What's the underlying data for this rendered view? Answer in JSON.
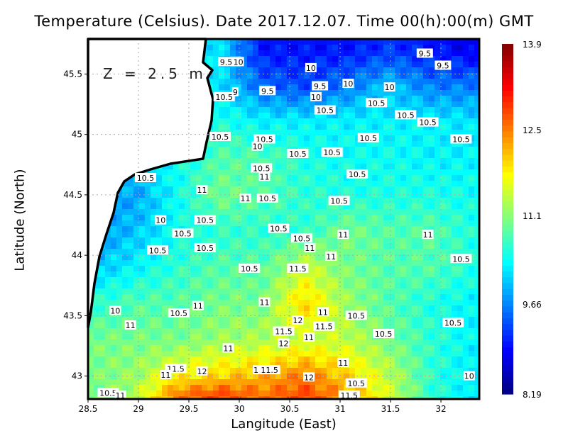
{
  "title": "Temperature (Celsius). Date 2017.12.07. Time 00(h):00(m)  GMT",
  "depth_label": "Z = 2.5 m",
  "chart_data": {
    "type": "heatmap",
    "title": "Temperature (Celsius). Date 2017.12.07. Time 00(h):00(m)  GMT",
    "xlabel": "Langitude (East)",
    "ylabel": "Latitude (North)",
    "xlim": [
      28.5,
      32.38
    ],
    "ylim": [
      42.81,
      45.79
    ],
    "xticks": [
      "28.5",
      "29",
      "29.5",
      "30",
      "30.5",
      "31",
      "31.5",
      "32"
    ],
    "yticks": [
      "43",
      "43.5",
      "44",
      "44.5",
      "45",
      "45.5"
    ],
    "grid": true,
    "colorbar": {
      "colormap": "jet",
      "min": 8.19,
      "max": 13.9,
      "ticks": [
        "13.9",
        "12.5",
        "11.1",
        "9.66",
        "8.19"
      ]
    },
    "grid_lon": [
      28.55,
      28.97,
      29.39,
      29.81,
      30.23,
      30.65,
      31.07,
      31.49,
      31.91,
      32.33
    ],
    "grid_lat": [
      45.7,
      45.4,
      45.1,
      44.8,
      44.5,
      44.2,
      43.9,
      43.6,
      43.3,
      43.0,
      42.85
    ],
    "values": [
      [
        null,
        null,
        null,
        null,
        9.0,
        9.0,
        9.0,
        9.2,
        9.0,
        8.8
      ],
      [
        null,
        null,
        null,
        null,
        9.5,
        9.3,
        9.6,
        10.0,
        9.6,
        9.6
      ],
      [
        null,
        null,
        null,
        10.5,
        10.3,
        10.3,
        10.3,
        10.3,
        10.3,
        10.2
      ],
      [
        null,
        10.2,
        10.4,
        10.8,
        10.8,
        10.5,
        10.4,
        10.4,
        10.3,
        10.3
      ],
      [
        9.9,
        9.8,
        10.4,
        11.0,
        10.8,
        10.6,
        10.5,
        10.5,
        10.5,
        10.4
      ],
      [
        9.7,
        10.0,
        10.4,
        10.6,
        10.6,
        10.6,
        11.0,
        10.8,
        10.8,
        10.5
      ],
      [
        10.0,
        10.3,
        10.6,
        10.8,
        10.8,
        11.5,
        11.0,
        10.8,
        10.8,
        10.5
      ],
      [
        10.6,
        10.8,
        10.8,
        11.0,
        11.0,
        12.0,
        11.2,
        10.8,
        10.5,
        10.3
      ],
      [
        11.0,
        11.0,
        11.0,
        11.2,
        11.3,
        11.5,
        11.4,
        11.0,
        10.6,
        10.3
      ],
      [
        11.0,
        11.2,
        11.8,
        12.0,
        12.2,
        12.5,
        12.0,
        11.4,
        10.6,
        10.2
      ],
      [
        11.0,
        11.3,
        12.5,
        12.8,
        12.5,
        12.8,
        12.3,
        11.5,
        10.6,
        10.2
      ]
    ],
    "contour_labels": [
      {
        "lon": 29.87,
        "lat": 45.6,
        "text": "9.5"
      },
      {
        "lon": 29.99,
        "lat": 45.6,
        "text": "10"
      },
      {
        "lon": 31.84,
        "lat": 45.67,
        "text": "9.5"
      },
      {
        "lon": 32.02,
        "lat": 45.57,
        "text": "9.5"
      },
      {
        "lon": 30.71,
        "lat": 45.55,
        "text": "10"
      },
      {
        "lon": 31.08,
        "lat": 45.42,
        "text": "10"
      },
      {
        "lon": 31.49,
        "lat": 45.39,
        "text": "10"
      },
      {
        "lon": 30.28,
        "lat": 45.36,
        "text": "9.5"
      },
      {
        "lon": 30.8,
        "lat": 45.4,
        "text": "9.5"
      },
      {
        "lon": 30.76,
        "lat": 45.31,
        "text": "10"
      },
      {
        "lon": 29.85,
        "lat": 45.31,
        "text": "10.5"
      },
      {
        "lon": 29.96,
        "lat": 45.35,
        "text": "9"
      },
      {
        "lon": 30.85,
        "lat": 45.2,
        "text": "10.5"
      },
      {
        "lon": 31.36,
        "lat": 45.26,
        "text": "10.5"
      },
      {
        "lon": 31.65,
        "lat": 45.16,
        "text": "10.5"
      },
      {
        "lon": 31.87,
        "lat": 45.1,
        "text": "10.5"
      },
      {
        "lon": 32.2,
        "lat": 44.96,
        "text": "10.5"
      },
      {
        "lon": 29.81,
        "lat": 44.98,
        "text": "10.5"
      },
      {
        "lon": 30.25,
        "lat": 44.96,
        "text": "10.5"
      },
      {
        "lon": 30.18,
        "lat": 44.9,
        "text": "10"
      },
      {
        "lon": 31.28,
        "lat": 44.97,
        "text": "10.5"
      },
      {
        "lon": 30.92,
        "lat": 44.85,
        "text": "10.5"
      },
      {
        "lon": 30.58,
        "lat": 44.84,
        "text": "10.5"
      },
      {
        "lon": 30.22,
        "lat": 44.72,
        "text": "10.5"
      },
      {
        "lon": 30.25,
        "lat": 44.65,
        "text": "11"
      },
      {
        "lon": 31.17,
        "lat": 44.67,
        "text": "10.5"
      },
      {
        "lon": 29.07,
        "lat": 44.64,
        "text": "10.5"
      },
      {
        "lon": 29.63,
        "lat": 44.54,
        "text": "11"
      },
      {
        "lon": 30.06,
        "lat": 44.47,
        "text": "11"
      },
      {
        "lon": 30.28,
        "lat": 44.47,
        "text": "10.5"
      },
      {
        "lon": 30.99,
        "lat": 44.45,
        "text": "10.5"
      },
      {
        "lon": 29.66,
        "lat": 44.29,
        "text": "10.5"
      },
      {
        "lon": 29.22,
        "lat": 44.29,
        "text": "10"
      },
      {
        "lon": 29.44,
        "lat": 44.18,
        "text": "10.5"
      },
      {
        "lon": 30.39,
        "lat": 44.22,
        "text": "10.5"
      },
      {
        "lon": 30.62,
        "lat": 44.14,
        "text": "10.5"
      },
      {
        "lon": 31.03,
        "lat": 44.17,
        "text": "11"
      },
      {
        "lon": 31.87,
        "lat": 44.17,
        "text": "11"
      },
      {
        "lon": 30.7,
        "lat": 44.06,
        "text": "11"
      },
      {
        "lon": 29.19,
        "lat": 44.04,
        "text": "10.5"
      },
      {
        "lon": 29.66,
        "lat": 44.06,
        "text": "10.5"
      },
      {
        "lon": 30.91,
        "lat": 43.99,
        "text": "11"
      },
      {
        "lon": 32.2,
        "lat": 43.97,
        "text": "10.5"
      },
      {
        "lon": 30.1,
        "lat": 43.89,
        "text": "10.5"
      },
      {
        "lon": 30.58,
        "lat": 43.89,
        "text": "11.5"
      },
      {
        "lon": 30.25,
        "lat": 43.61,
        "text": "11"
      },
      {
        "lon": 29.59,
        "lat": 43.58,
        "text": "11"
      },
      {
        "lon": 29.4,
        "lat": 43.52,
        "text": "10.5"
      },
      {
        "lon": 28.77,
        "lat": 43.54,
        "text": "10"
      },
      {
        "lon": 30.83,
        "lat": 43.53,
        "text": "11"
      },
      {
        "lon": 30.58,
        "lat": 43.46,
        "text": "12"
      },
      {
        "lon": 31.16,
        "lat": 43.5,
        "text": "10.5"
      },
      {
        "lon": 32.12,
        "lat": 43.44,
        "text": "10.5"
      },
      {
        "lon": 28.92,
        "lat": 43.42,
        "text": "11"
      },
      {
        "lon": 30.44,
        "lat": 43.37,
        "text": "11.5"
      },
      {
        "lon": 30.84,
        "lat": 43.41,
        "text": "11.5"
      },
      {
        "lon": 30.69,
        "lat": 43.32,
        "text": "11"
      },
      {
        "lon": 31.43,
        "lat": 43.35,
        "text": "10.5"
      },
      {
        "lon": 30.44,
        "lat": 43.27,
        "text": "12"
      },
      {
        "lon": 29.89,
        "lat": 43.23,
        "text": "11"
      },
      {
        "lon": 31.03,
        "lat": 43.11,
        "text": "11"
      },
      {
        "lon": 29.37,
        "lat": 43.06,
        "text": "11.5"
      },
      {
        "lon": 29.63,
        "lat": 43.04,
        "text": "12"
      },
      {
        "lon": 29.27,
        "lat": 43.01,
        "text": "11"
      },
      {
        "lon": 30.19,
        "lat": 43.05,
        "text": "12"
      },
      {
        "lon": 30.3,
        "lat": 43.05,
        "text": "11.5"
      },
      {
        "lon": 30.69,
        "lat": 42.99,
        "text": "12"
      },
      {
        "lon": 31.16,
        "lat": 42.94,
        "text": "10.5"
      },
      {
        "lon": 32.28,
        "lat": 43.0,
        "text": "10"
      },
      {
        "lon": 28.7,
        "lat": 42.86,
        "text": "10.5"
      },
      {
        "lon": 28.82,
        "lat": 42.84,
        "text": "11"
      },
      {
        "lon": 31.09,
        "lat": 42.84,
        "text": "11.5"
      }
    ]
  }
}
